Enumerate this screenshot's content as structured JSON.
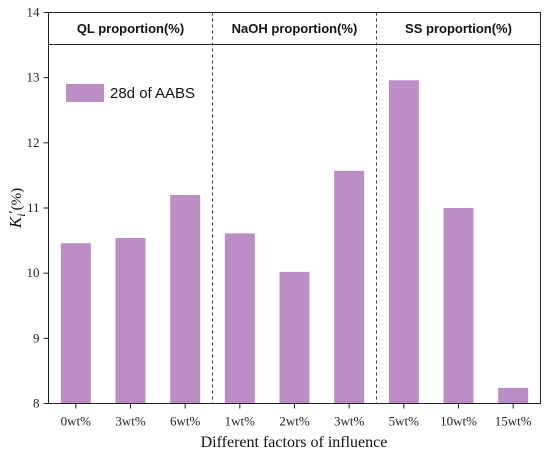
{
  "chart_data": {
    "type": "bar",
    "title": "",
    "xlabel": "Different factors of influence",
    "ylabel_main": "K",
    "ylabel_sub": "i",
    "ylabel_prime": "′",
    "ylabel_unit": "(%)",
    "ylim": [
      8,
      14
    ],
    "yticks": [
      "8",
      "9",
      "10",
      "11",
      "12",
      "13",
      "14"
    ],
    "categories": [
      "0wt%",
      "3wt%",
      "6wt%",
      "1wt%",
      "2wt%",
      "3wt%",
      "5wt%",
      "10wt%",
      "15wt%"
    ],
    "series": [
      {
        "name": "28d of AABS",
        "color": "#bb8ec6",
        "values": [
          10.46,
          10.54,
          11.2,
          10.61,
          10.02,
          11.57,
          12.96,
          11.0,
          8.24
        ]
      }
    ],
    "groups": [
      {
        "label": "QL proportion(%)",
        "start": 0,
        "end": 2
      },
      {
        "label": "NaOH proportion(%)",
        "start": 3,
        "end": 5
      },
      {
        "label": "SS proportion(%)",
        "start": 6,
        "end": 8
      }
    ],
    "legend_position": "top-left",
    "grid": false
  }
}
